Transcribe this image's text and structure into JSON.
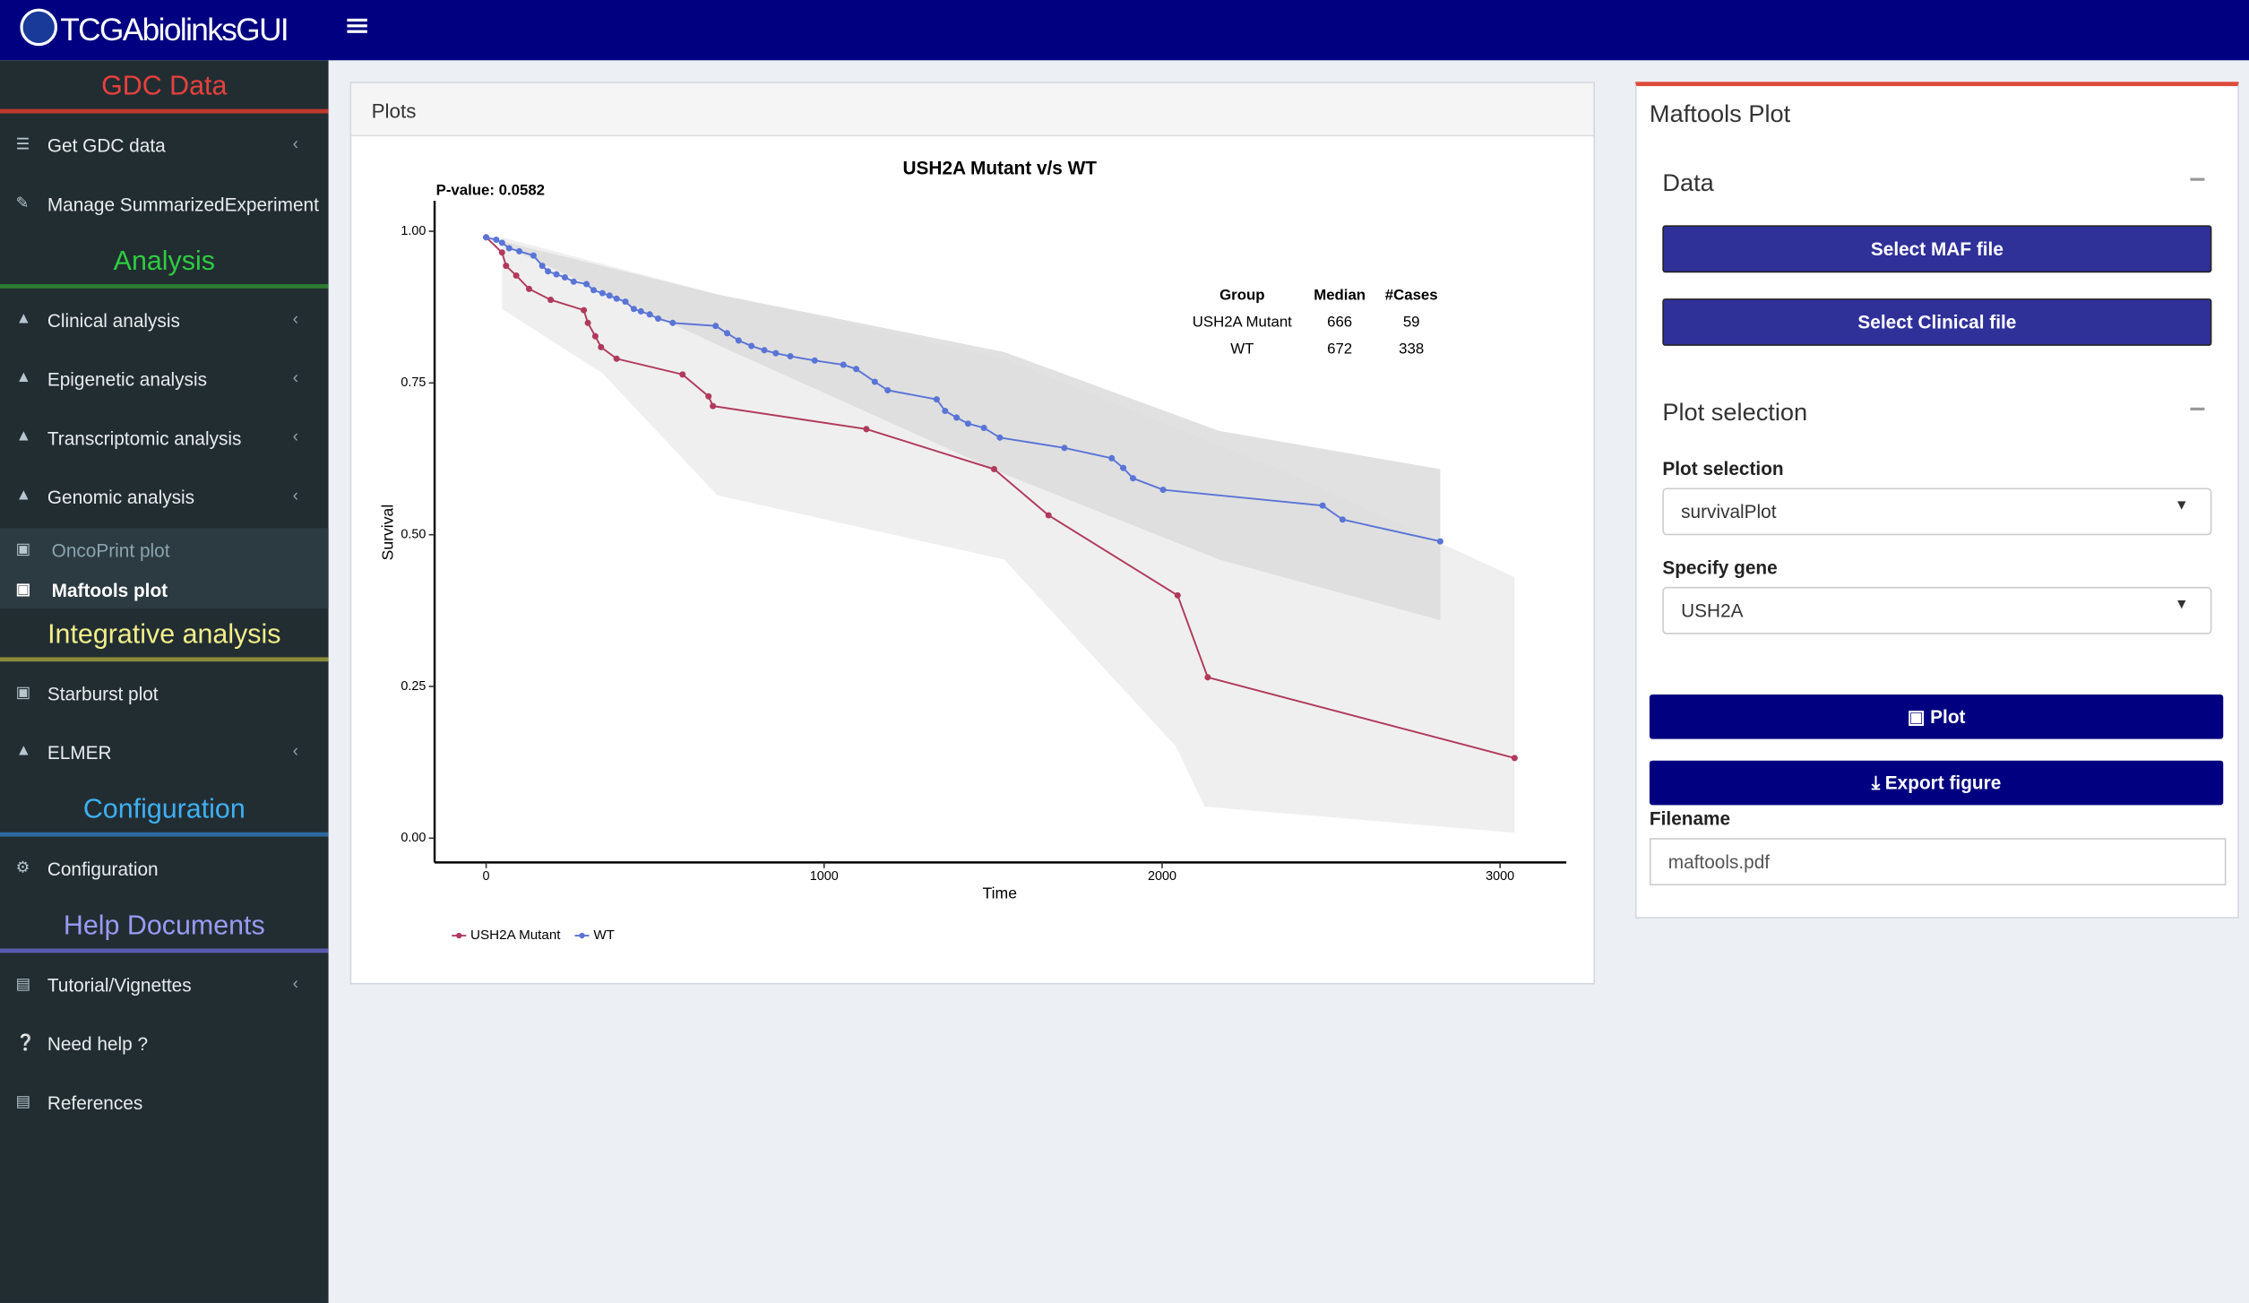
{
  "header": {
    "title": "TCGAbiolinksGUI"
  },
  "sidebar": {
    "sections": [
      {
        "title": "GDC Data",
        "items": [
          "Get GDC data",
          "Manage SummarizedExperiment"
        ]
      },
      {
        "title": "Analysis",
        "items": [
          "Clinical analysis",
          "Epigenetic analysis",
          "Transcriptomic analysis",
          "Genomic analysis"
        ],
        "subitems": [
          "OncoPrint plot",
          "Maftools plot"
        ]
      },
      {
        "title": "Integrative analysis",
        "items": [
          "Starburst plot",
          "ELMER"
        ]
      },
      {
        "title": "Configuration",
        "items": [
          "Configuration"
        ]
      },
      {
        "title": "Help Documents",
        "items": [
          "Tutorial/Vignettes",
          "Need help ?",
          "References"
        ]
      }
    ]
  },
  "plots_panel": {
    "title": "Plots"
  },
  "chart_data": {
    "type": "line",
    "title": "USH2A Mutant v/s WT",
    "subtitle": "P-value: 0.0582",
    "x_label": "Time",
    "y_label": "Survival",
    "xlim": [
      -144,
      3196
    ],
    "ylim": [
      -0.04,
      1.05
    ],
    "xticks": [
      0,
      1000,
      2000,
      3000
    ],
    "yticks": [
      {
        "value": 0,
        "label": "0.00"
      },
      {
        "value": 0.25,
        "label": "0.25"
      },
      {
        "value": 0.5,
        "label": "0.50"
      },
      {
        "value": 0.75,
        "label": "0.75"
      },
      {
        "value": 1,
        "label": "1.00"
      }
    ],
    "series": [
      {
        "name": "USH2A Mutant",
        "color": "#b03a5b",
        "band_color": "#ececec",
        "x": [
          0,
          47,
          59,
          89,
          127,
          191,
          289,
          301,
          323,
          340,
          386,
          581,
          658,
          671,
          1125,
          1503,
          1664,
          2046,
          2135,
          3043
        ],
        "values": [
          0.99,
          0.965,
          0.943,
          0.927,
          0.905,
          0.887,
          0.87,
          0.849,
          0.827,
          0.809,
          0.79,
          0.764,
          0.728,
          0.712,
          0.674,
          0.608,
          0.532,
          0.4,
          0.265,
          0.132
        ],
        "band_x": [
          47,
          684,
          1533,
          2381,
          3043
        ],
        "band_upper": [
          0.99,
          0.896,
          0.79,
          0.6,
          0.43
        ],
        "band_lower_x": [
          47,
          344,
          684,
          1533,
          2041,
          2126,
          3043
        ],
        "band_lower": [
          0.872,
          0.766,
          0.565,
          0.459,
          0.151,
          0.052,
          0.009
        ]
      },
      {
        "name": "WT",
        "color": "#5a74d6",
        "band_color": "#dcdcdc",
        "x": [
          0,
          30,
          47,
          68,
          98,
          140,
          166,
          183,
          208,
          233,
          259,
          297,
          318,
          344,
          365,
          386,
          412,
          437,
          458,
          484,
          509,
          552,
          679,
          713,
          747,
          785,
          823,
          857,
          900,
          972,
          1057,
          1095,
          1150,
          1188,
          1333,
          1358,
          1392,
          1426,
          1473,
          1520,
          1711,
          1851,
          1885,
          1914,
          2003,
          2475,
          2534,
          2823
        ],
        "values": [
          0.99,
          0.986,
          0.981,
          0.972,
          0.967,
          0.96,
          0.943,
          0.934,
          0.929,
          0.924,
          0.917,
          0.913,
          0.903,
          0.898,
          0.894,
          0.889,
          0.884,
          0.872,
          0.868,
          0.863,
          0.856,
          0.849,
          0.844,
          0.832,
          0.82,
          0.811,
          0.804,
          0.799,
          0.794,
          0.787,
          0.78,
          0.773,
          0.752,
          0.738,
          0.723,
          0.704,
          0.693,
          0.683,
          0.676,
          0.66,
          0.643,
          0.626,
          0.61,
          0.593,
          0.574,
          0.548,
          0.525,
          0.489
        ],
        "band_x": [
          0,
          684,
          1533,
          2169,
          2823
        ],
        "band_upper": [
          0.99,
          0.896,
          0.801,
          0.671,
          0.608
        ],
        "band_lower_x": [
          0,
          684,
          1533,
          2169,
          2823
        ],
        "band_lower": [
          0.99,
          0.813,
          0.6,
          0.459,
          0.359
        ]
      }
    ],
    "table": {
      "header": [
        "Group",
        "Median",
        "#Cases"
      ],
      "rows": [
        [
          "USH2A Mutant",
          "666",
          "59"
        ],
        [
          "WT",
          "672",
          "338"
        ]
      ]
    }
  },
  "maftools_panel": {
    "title": "Maftools Plot",
    "data_section": "Data",
    "select_maf": "Select MAF file",
    "select_clinical": "Select Clinical file",
    "plot_section": "Plot selection",
    "plot_selection_label": "Plot selection",
    "plot_selection_value": "survivalPlot",
    "gene_label": "Specify gene",
    "gene_value": "USH2A",
    "plot_button": "Plot",
    "export_button": "Export figure",
    "filename_label": "Filename",
    "filename_value": "maftools.pdf"
  }
}
